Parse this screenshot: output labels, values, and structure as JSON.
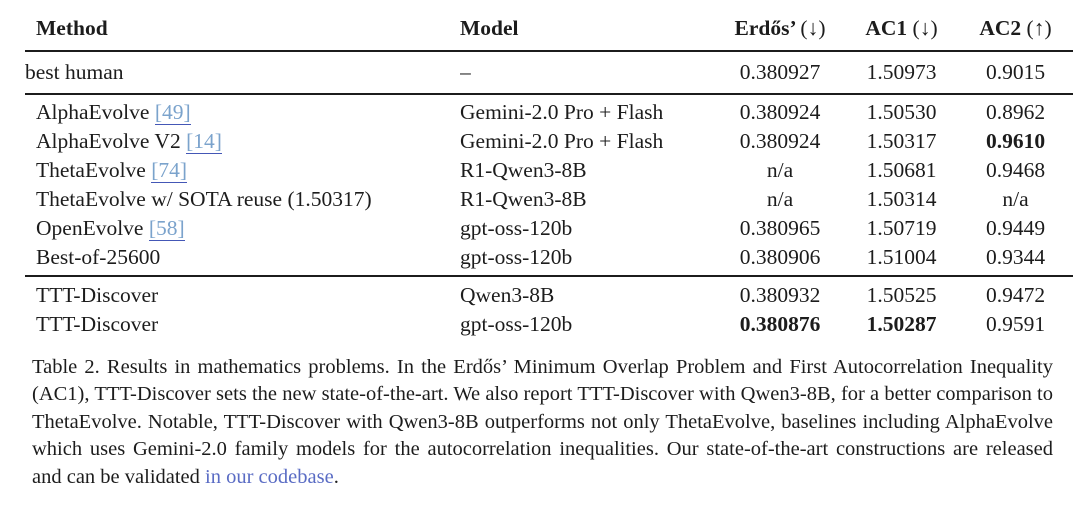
{
  "colors": {
    "text": "#1c1c1c",
    "rule": "#1c1c1c",
    "citation_text": "#7ba3cc",
    "citation_underline": "#4457b6",
    "caption_link": "#5a6cc4",
    "background": "#ffffff"
  },
  "table": {
    "header": {
      "method": "Method",
      "model": "Model",
      "erdos": "Erdős’",
      "erdos_dir": "(↓)",
      "ac1": "AC1",
      "ac1_dir": "(↓)",
      "ac2": "AC2",
      "ac2_dir": "(↑)"
    },
    "groups": [
      {
        "rows": [
          {
            "method": "best human",
            "citation": "",
            "model": "–",
            "erdos": "0.380927",
            "ac1": "1.50973",
            "ac2": "0.9015"
          }
        ]
      },
      {
        "rows": [
          {
            "method": "AlphaEvolve",
            "citation": "[49]",
            "model": "Gemini-2.0 Pro + Flash",
            "erdos": "0.380924",
            "ac1": "1.50530",
            "ac2": "0.8962"
          },
          {
            "method": "AlphaEvolve V2",
            "citation": "[14]",
            "model": "Gemini-2.0 Pro + Flash",
            "erdos": "0.380924",
            "ac1": "1.50317",
            "ac2": "0.9610"
          },
          {
            "method": "ThetaEvolve",
            "citation": "[74]",
            "model": "R1-Qwen3-8B",
            "erdos": "n/a",
            "ac1": "1.50681",
            "ac2": "0.9468"
          },
          {
            "method": "ThetaEvolve w/ SOTA reuse (1.50317)",
            "citation": "",
            "model": "R1-Qwen3-8B",
            "erdos": "n/a",
            "ac1": "1.50314",
            "ac2": "n/a"
          },
          {
            "method": "OpenEvolve",
            "citation": "[58]",
            "model": "gpt-oss-120b",
            "erdos": "0.380965",
            "ac1": "1.50719",
            "ac2": "0.9449"
          },
          {
            "method": "Best-of-25600",
            "citation": "",
            "model": "gpt-oss-120b",
            "erdos": "0.380906",
            "ac1": "1.51004",
            "ac2": "0.9344"
          }
        ]
      },
      {
        "rows": [
          {
            "method": "TTT-Discover",
            "citation": "",
            "model": "Qwen3-8B",
            "erdos": "0.380932",
            "ac1": "1.50525",
            "ac2": "0.9472"
          },
          {
            "method": "TTT-Discover",
            "citation": "",
            "model": "gpt-oss-120b",
            "erdos": "0.380876",
            "ac1": "1.50287",
            "ac2": "0.9591"
          }
        ]
      }
    ]
  },
  "caption": {
    "label": "Table 2.",
    "body": "Results in mathematics problems. In the Erdős’ Minimum Overlap Problem and First Autocorrelation Inequality (AC1), TTT-Discover sets the new state-of-the-art. We also report TTT-Discover with Qwen3-8B, for a better comparison to ThetaEvolve. Notable, TTT-Discover with Qwen3-8B outperforms not only ThetaEvolve, baselines including AlphaEvolve which uses Gemini-2.0 family models for the autocorrelation inequalities. Our state-of-the-art constructions are released and can be validated",
    "link_text": "in our codebase",
    "after_link": "."
  }
}
